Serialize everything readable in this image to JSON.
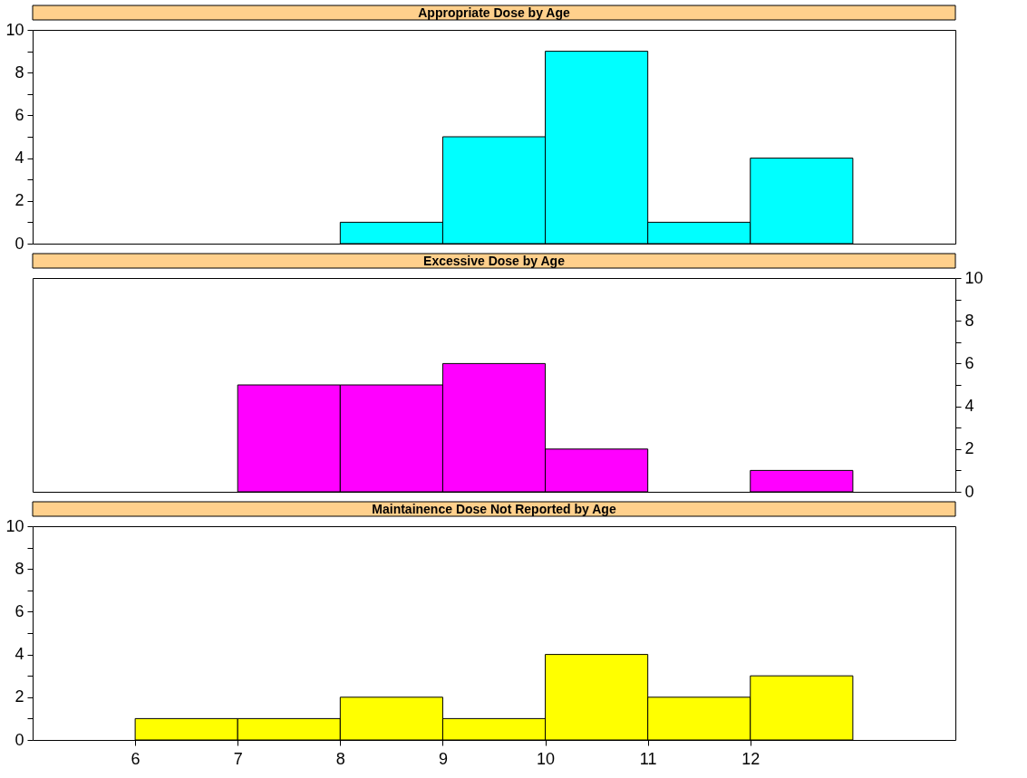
{
  "chart_data": [
    {
      "type": "histogram",
      "title": "Appropriate Dose by Age",
      "bins": [
        5,
        6,
        7,
        8,
        9,
        10,
        11,
        12,
        13,
        14
      ],
      "values": [
        0,
        0,
        0,
        1,
        5,
        9,
        1,
        4,
        0
      ],
      "color": "#00ffff",
      "xlim": [
        5,
        14
      ],
      "ylim": [
        0,
        10
      ],
      "yticks": [
        0,
        {
          "value": 1,
          "label": null
        },
        2,
        {
          "value": 3,
          "label": null
        },
        4,
        {
          "value": 5,
          "label": null
        },
        6,
        {
          "value": 7,
          "label": null
        },
        8,
        {
          "value": 9,
          "label": null
        },
        10
      ],
      "grid": false,
      "tick_labels": "y"
    },
    {
      "type": "histogram",
      "title": "Excessive Dose by Age",
      "bins": [
        5,
        6,
        7,
        8,
        9,
        10,
        11,
        12,
        13,
        14
      ],
      "values": [
        0,
        0,
        5,
        5,
        6,
        2,
        0,
        1,
        0
      ],
      "color": "#ff00ff",
      "xlim": [
        5,
        14
      ],
      "ylim": [
        0,
        10
      ],
      "yticks": [
        0,
        {
          "value": 1,
          "label": null
        },
        2,
        {
          "value": 3,
          "label": null
        },
        4,
        {
          "value": 5,
          "label": null
        },
        6,
        {
          "value": 7,
          "label": null
        },
        8,
        {
          "value": 9,
          "label": null
        },
        10
      ],
      "grid": false,
      "tick_labels": "y"
    },
    {
      "type": "histogram",
      "title": "Maintainence Dose Not Reported by Age",
      "bins": [
        5,
        6,
        7,
        8,
        9,
        10,
        11,
        12,
        13,
        14
      ],
      "values": [
        0,
        1,
        1,
        2,
        1,
        4,
        2,
        3,
        0
      ],
      "color": "#ffff00",
      "xlim": [
        5,
        14
      ],
      "ylim": [
        0,
        10
      ],
      "yticks": [
        0,
        {
          "value": 1,
          "label": null
        },
        2,
        {
          "value": 3,
          "label": null
        },
        4,
        {
          "value": 5,
          "label": null
        },
        6,
        {
          "value": 7,
          "label": null
        },
        8,
        {
          "value": 9,
          "label": null
        },
        10
      ],
      "xticks": [
        6,
        7,
        8,
        9,
        10,
        11,
        12
      ],
      "grid": false
    }
  ]
}
